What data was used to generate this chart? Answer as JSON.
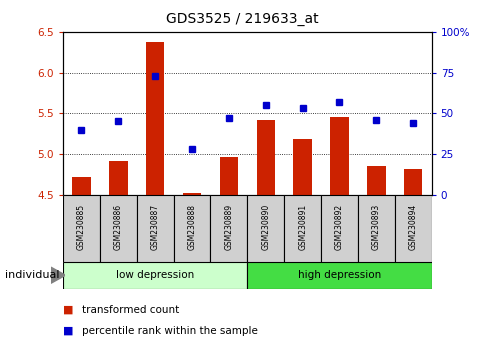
{
  "title": "GDS3525 / 219633_at",
  "samples": [
    "GSM230885",
    "GSM230886",
    "GSM230887",
    "GSM230888",
    "GSM230889",
    "GSM230890",
    "GSM230891",
    "GSM230892",
    "GSM230893",
    "GSM230894"
  ],
  "bar_values": [
    4.72,
    4.92,
    6.37,
    4.52,
    4.96,
    5.42,
    5.18,
    5.46,
    4.85,
    4.82
  ],
  "dot_values": [
    40,
    45,
    73,
    28,
    47,
    55,
    53,
    57,
    46,
    44
  ],
  "ylim": [
    4.5,
    6.5
  ],
  "yticks": [
    4.5,
    5.0,
    5.5,
    6.0,
    6.5
  ],
  "bar_color": "#cc2200",
  "dot_color": "#0000cc",
  "group1_label": "low depression",
  "group2_label": "high depression",
  "group1_color": "#ccffcc",
  "group2_color": "#44dd44",
  "legend_bar": "transformed count",
  "legend_dot": "percentile rank within the sample",
  "individual_label": "individual",
  "right_yticks": [
    0,
    25,
    50,
    75,
    100
  ],
  "right_yticklabels": [
    "0",
    "25",
    "50",
    "75",
    "100%"
  ],
  "bar_bottom": 4.5,
  "sample_cell_color": "#d0d0d0",
  "title_fontsize": 10
}
